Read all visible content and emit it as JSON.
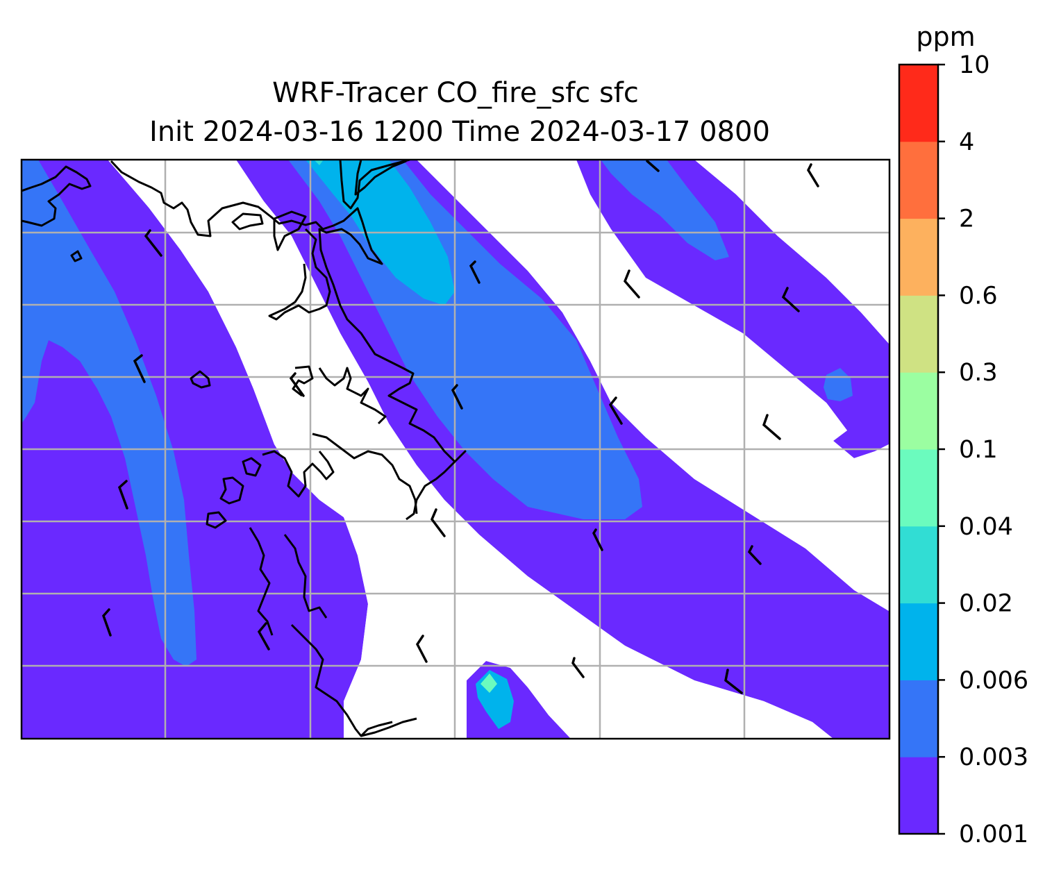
{
  "figure": {
    "title_line1": "WRF-Tracer CO_fire_sfc sfc",
    "title_line2": "Init 2024-03-16 1200 Time 2024-03-17 0800"
  },
  "colorbar": {
    "unit": "ppm",
    "levels": [
      "0.001",
      "0.003",
      "0.006",
      "0.02",
      "0.04",
      "0.1",
      "0.3",
      "0.6",
      "2",
      "4",
      "10"
    ],
    "colors": [
      "#6a29ff",
      "#3575f7",
      "#00b3ec",
      "#31ddd4",
      "#6bfbbe",
      "#9bfea1",
      "#cfe283",
      "#fdb15e",
      "#ff6f3d",
      "#ff2a1a"
    ]
  },
  "map": {
    "fill_colors": {
      "band_0001": "#6a29ff",
      "band_0003": "#3575f7",
      "band_0006": "#00b3ec",
      "band_002": "#31ddd4",
      "band_004": "#6bfbbe"
    },
    "gridline_color": "#b0b0b0",
    "coastline_color": "#000000",
    "wind_barbs": "present"
  }
}
